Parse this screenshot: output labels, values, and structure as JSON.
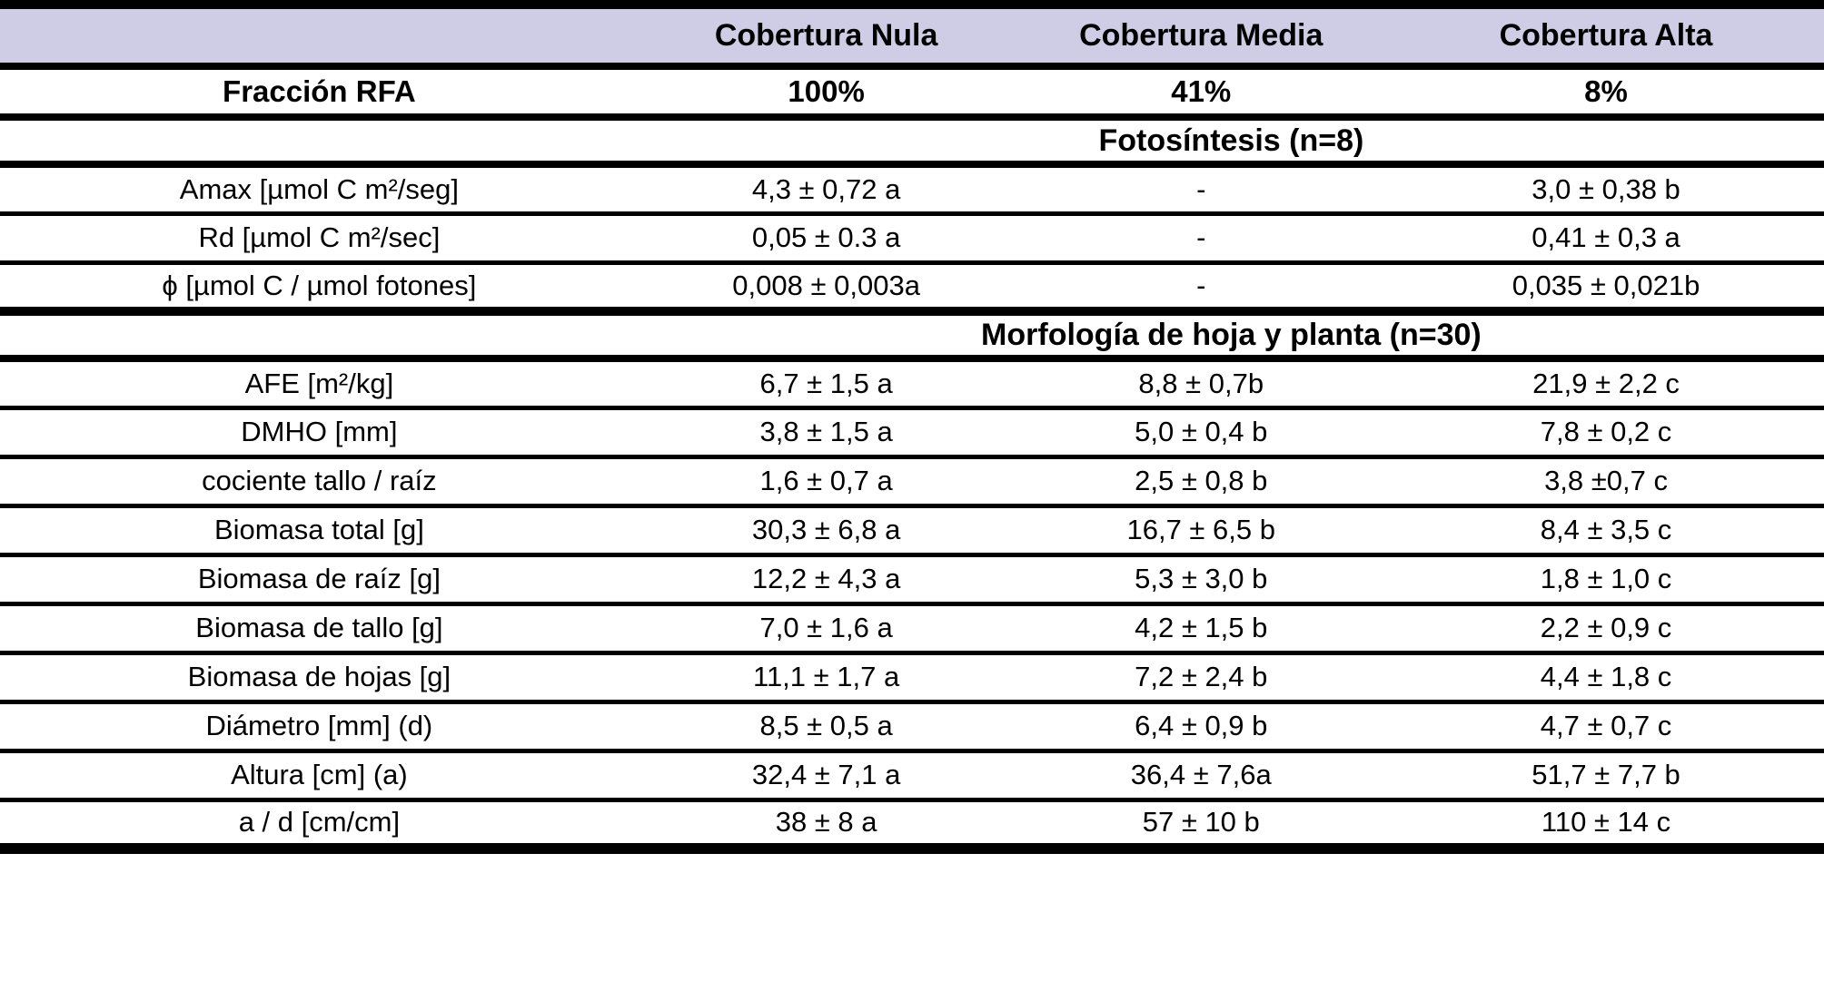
{
  "colors": {
    "header_bg": "#CFCDE6",
    "rule": "#000000",
    "text": "#000000",
    "page_bg": "#FFFFFF"
  },
  "table": {
    "header": {
      "col0": "",
      "col1": "Cobertura Nula",
      "col2": "Cobertura Media",
      "col3": "Cobertura Alta"
    },
    "rfa_row": {
      "label": "Fracción RFA",
      "values": [
        "100%",
        "41%",
        "8%"
      ]
    },
    "sections": [
      {
        "title": "Fotosíntesis (n=8)",
        "rows": [
          {
            "label": "Amax [µmol C m²/seg]",
            "values": [
              "4,3 ± 0,72 a",
              "-",
              "3,0 ± 0,38 b"
            ]
          },
          {
            "label": "Rd [µmol C m²/sec]",
            "values": [
              "0,05 ± 0.3 a",
              "-",
              "0,41 ± 0,3 a"
            ]
          },
          {
            "label": "ϕ [µmol C / µmol fotones]",
            "values": [
              "0,008 ± 0,003a",
              "-",
              "0,035 ± 0,021b"
            ]
          }
        ]
      },
      {
        "title": "Morfología de hoja y planta (n=30)",
        "rows": [
          {
            "label": "AFE [m²/kg]",
            "values": [
              "6,7 ± 1,5 a",
              "8,8 ± 0,7b",
              "21,9 ± 2,2 c"
            ]
          },
          {
            "label": "DMHO [mm]",
            "values": [
              "3,8 ± 1,5 a",
              "5,0 ± 0,4 b",
              "7,8 ± 0,2 c"
            ]
          },
          {
            "label": "cociente tallo / raíz",
            "values": [
              "1,6 ± 0,7 a",
              "2,5 ± 0,8 b",
              "3,8 ±0,7 c"
            ]
          },
          {
            "label": "Biomasa total [g]",
            "values": [
              "30,3 ± 6,8 a",
              "16,7 ± 6,5 b",
              "8,4 ± 3,5 c"
            ]
          },
          {
            "label": "Biomasa de raíz [g]",
            "values": [
              "12,2 ± 4,3 a",
              "5,3 ± 3,0 b",
              "1,8 ± 1,0 c"
            ]
          },
          {
            "label": "Biomasa de tallo [g]",
            "values": [
              "7,0 ± 1,6 a",
              "4,2 ± 1,5 b",
              "2,2 ± 0,9 c"
            ]
          },
          {
            "label": "Biomasa de hojas [g]",
            "values": [
              "11,1 ± 1,7 a",
              "7,2 ± 2,4 b",
              "4,4 ± 1,8 c"
            ]
          },
          {
            "label": "Diámetro [mm] (d)",
            "values": [
              "8,5 ± 0,5 a",
              "6,4 ± 0,9 b",
              "4,7 ± 0,7 c"
            ]
          },
          {
            "label": "Altura [cm] (a)",
            "values": [
              "32,4 ± 7,1 a",
              "36,4 ± 7,6a",
              "51,7 ± 7,7 b"
            ]
          },
          {
            "label": "a / d [cm/cm]",
            "values": [
              "38 ± 8 a",
              "57 ± 10 b",
              "110 ± 14 c"
            ]
          }
        ]
      }
    ]
  }
}
